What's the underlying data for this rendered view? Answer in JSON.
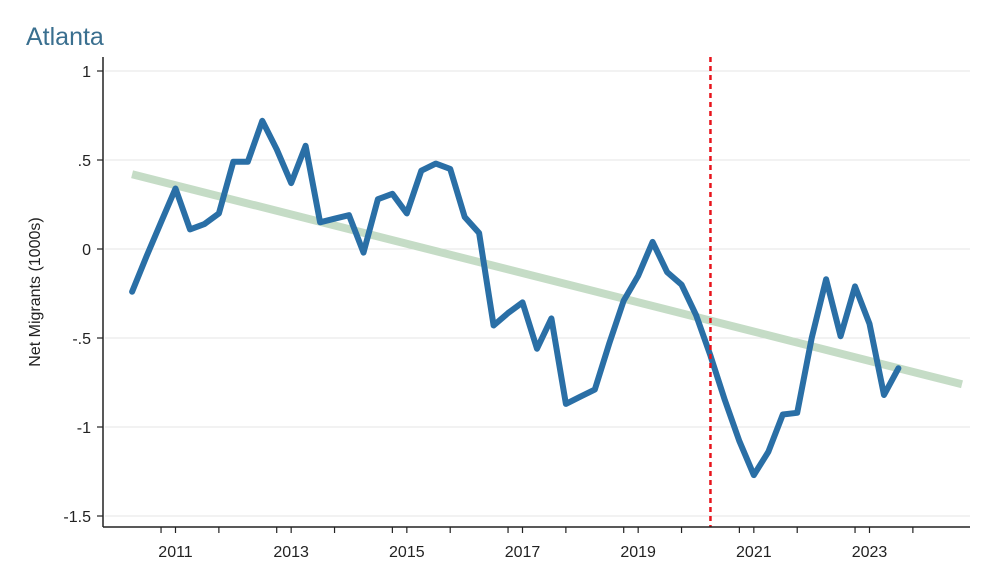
{
  "chart_data": {
    "type": "line",
    "title": "Atlanta",
    "xlabel": "",
    "ylabel": "Net Migrants (1000s)",
    "xlim": [
      2010.0,
      2024.9
    ],
    "ylim": [
      -1.5,
      1.0
    ],
    "x_ticks": [
      2011,
      2013,
      2015,
      2017,
      2019,
      2021,
      2023
    ],
    "x_minor_ticks": [
      2010.75,
      2011.75,
      2012.75,
      2013.75,
      2014.75,
      2015.75,
      2016.75,
      2017.75,
      2018.75,
      2019.75,
      2020.75,
      2021.75,
      2022.75,
      2023.75
    ],
    "y_ticks": [
      {
        "value": 1,
        "label": "1"
      },
      {
        "value": 0.5,
        "label": ".5"
      },
      {
        "value": 0,
        "label": "0"
      },
      {
        "value": -0.5,
        "label": "-.5"
      },
      {
        "value": -1,
        "label": "-1"
      },
      {
        "value": -1.5,
        "label": "-1.5"
      }
    ],
    "grid": true,
    "series": [
      {
        "color": "#2a6fa6",
        "x": [
          2010.25,
          2010.5,
          2010.75,
          2011.0,
          2011.25,
          2011.5,
          2011.75,
          2012.0,
          2012.25,
          2012.5,
          2012.75,
          2013.0,
          2013.25,
          2013.5,
          2013.75,
          2014.0,
          2014.25,
          2014.5,
          2014.75,
          2015.0,
          2015.25,
          2015.5,
          2015.75,
          2016.0,
          2016.25,
          2016.5,
          2016.75,
          2017.0,
          2017.25,
          2017.5,
          2017.75,
          2018.0,
          2018.25,
          2018.5,
          2018.75,
          2019.0,
          2019.25,
          2019.5,
          2019.75,
          2020.0,
          2020.25,
          2020.5,
          2020.75,
          2021.0,
          2021.25,
          2021.5,
          2021.75,
          2022.0,
          2022.25,
          2022.5,
          2022.75,
          2023.0,
          2023.25,
          2023.5
        ],
        "values": [
          -0.24,
          -0.04,
          0.15,
          0.34,
          0.11,
          0.14,
          0.2,
          0.49,
          0.49,
          0.72,
          0.56,
          0.37,
          0.58,
          0.15,
          0.17,
          0.19,
          -0.02,
          0.28,
          0.31,
          0.2,
          0.44,
          0.48,
          0.45,
          0.18,
          0.09,
          -0.43,
          -0.36,
          -0.3,
          -0.56,
          -0.39,
          -0.87,
          -0.83,
          -0.79,
          -0.53,
          -0.29,
          -0.15,
          0.04,
          -0.13,
          -0.2,
          -0.37,
          -0.6,
          -0.85,
          -1.08,
          -1.27,
          -1.14,
          -0.93,
          -0.92,
          -0.5,
          -0.17,
          -0.49,
          -0.21,
          -0.42,
          -0.82,
          -0.67
        ]
      },
      {
        "color": "#c5dcc6",
        "x": [
          2010.25,
          2024.6
        ],
        "values": [
          0.42,
          -0.76
        ]
      }
    ],
    "vline": {
      "x": 2020.25,
      "color": "#e8141b"
    }
  }
}
